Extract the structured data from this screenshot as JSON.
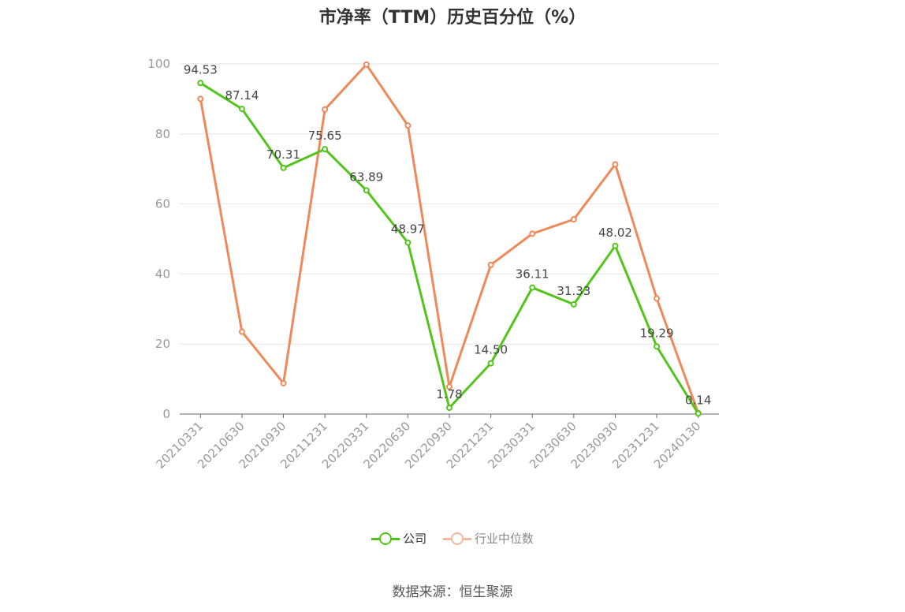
{
  "chart_data": {
    "type": "line",
    "title": "市净率（TTM）历史百分位（%）",
    "categories": [
      "20210331",
      "20210630",
      "20210930",
      "20211231",
      "20220331",
      "20220630",
      "20220930",
      "20221231",
      "20230331",
      "20230630",
      "20230930",
      "20231231",
      "20240130"
    ],
    "series": [
      {
        "name": "公司",
        "color": "#52c41a",
        "values": [
          94.53,
          87.14,
          70.31,
          75.65,
          63.89,
          48.97,
          1.78,
          14.5,
          36.11,
          31.33,
          48.02,
          19.29,
          0.14
        ],
        "labels": [
          "94.53",
          "87.14",
          "70.31",
          "75.65",
          "63.89",
          "48.97",
          "1.78",
          "14.50",
          "36.11",
          "31.33",
          "48.02",
          "19.29",
          "0.14"
        ]
      },
      {
        "name": "行业中位数",
        "color": "#f0895a",
        "values": [
          90.0,
          23.5,
          8.8,
          87.0,
          99.8,
          82.4,
          7.8,
          42.6,
          51.5,
          55.6,
          71.3,
          33.0,
          0.3
        ]
      }
    ],
    "yticks": [
      "0",
      "20",
      "40",
      "60",
      "80",
      "100"
    ],
    "ylim": [
      0,
      100
    ],
    "grid": true,
    "legend_position": "bottom"
  },
  "source": "数据来源：恒生聚源"
}
